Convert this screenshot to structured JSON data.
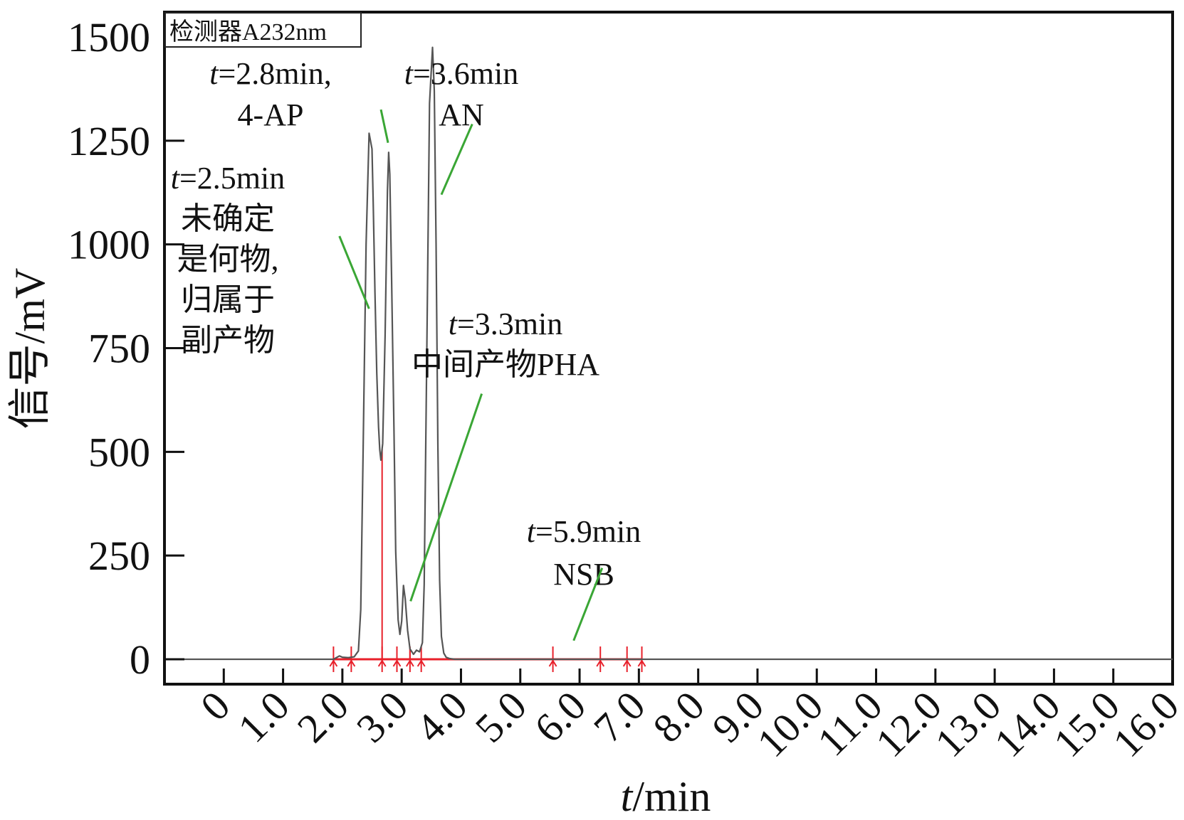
{
  "chart_data": {
    "type": "line",
    "xlabel": {
      "italic": "t",
      "rest": "/min"
    },
    "ylabel": "信号/mV",
    "xlim": [
      -1.0,
      16.0
    ],
    "ylim": [
      -60,
      1560
    ],
    "x_ticks": [
      0,
      1.0,
      2.0,
      3.0,
      4.0,
      5.0,
      6.0,
      7.0,
      8.0,
      9.0,
      10.0,
      11.0,
      12.0,
      13.0,
      14.0,
      15.0,
      16.0
    ],
    "x_tick_labels": [
      "0",
      "1.0",
      "2.0",
      "3.0",
      "4.0",
      "5.0",
      "6.0",
      "7.0",
      "8.0",
      "9.0",
      "10.0",
      "11.0",
      "12.0",
      "13.0",
      "14.0",
      "15.0",
      "16.0"
    ],
    "y_ticks": [
      0,
      250,
      500,
      750,
      1000,
      1250,
      1500
    ],
    "y_tick_labels": [
      "0",
      "250",
      "500",
      "750",
      "1000",
      "1250",
      "1500"
    ],
    "detector_label": "检测器A232nm",
    "grid": false,
    "series": [
      {
        "color": "#555555",
        "x": [
          -1.0,
          1.0,
          1.85,
          1.95,
          2.0,
          2.1,
          2.2,
          2.27,
          2.31,
          2.35,
          2.4,
          2.45,
          2.5,
          2.52,
          2.55,
          2.58,
          2.61,
          2.63,
          2.65,
          2.68,
          2.72,
          2.76,
          2.78,
          2.8,
          2.83,
          2.87,
          2.9,
          2.94,
          2.97,
          3.0,
          3.03,
          3.06,
          3.1,
          3.14,
          3.2,
          3.25,
          3.3,
          3.35,
          3.38,
          3.42,
          3.47,
          3.52,
          3.55,
          3.58,
          3.61,
          3.64,
          3.67,
          3.71,
          3.75,
          3.8,
          3.9,
          4.05,
          16.0
        ],
        "y": [
          0,
          0,
          0,
          8,
          5,
          4,
          6,
          20,
          120,
          500,
          1000,
          1268,
          1230,
          1100,
          880,
          690,
          560,
          505,
          480,
          520,
          780,
          1130,
          1222,
          1170,
          920,
          560,
          260,
          95,
          60,
          92,
          178,
          145,
          70,
          25,
          12,
          22,
          18,
          40,
          180,
          700,
          1340,
          1475,
          1370,
          1000,
          520,
          190,
          55,
          15,
          5,
          2,
          0,
          0,
          0
        ]
      }
    ],
    "integration_markers": {
      "color": "#e8202a",
      "baseline_range": [
        1.85,
        7.05
      ],
      "peak_drop_lines": [
        2.67,
        3.14
      ],
      "marker_positions": [
        1.85,
        2.15,
        2.67,
        2.92,
        3.14,
        3.33,
        5.55,
        6.35,
        6.8,
        7.05
      ]
    },
    "annotations": [
      {
        "lines": [
          "t=2.5min",
          "未确定",
          "是何物,",
          "归属于",
          "副产物"
        ],
        "leader": {
          "from": [
            1.95,
            1020
          ],
          "to": [
            2.45,
            845
          ]
        }
      },
      {
        "lines": [
          "t=2.8min,",
          "4-AP"
        ],
        "leader": {
          "from": [
            2.65,
            1325
          ],
          "to": [
            2.77,
            1245
          ]
        }
      },
      {
        "lines": [
          "t=3.6min",
          "AN"
        ],
        "leader": {
          "from": [
            4.19,
            1290
          ],
          "to": [
            3.67,
            1120
          ]
        }
      },
      {
        "lines": [
          "t=3.3min",
          "中间产物PHA"
        ],
        "leader": {
          "from": [
            4.35,
            640
          ],
          "to": [
            3.15,
            140
          ]
        }
      },
      {
        "lines": [
          "t=5.9min",
          "NSB"
        ],
        "leader": {
          "from": [
            6.38,
            220
          ],
          "to": [
            5.9,
            45
          ]
        }
      }
    ]
  }
}
